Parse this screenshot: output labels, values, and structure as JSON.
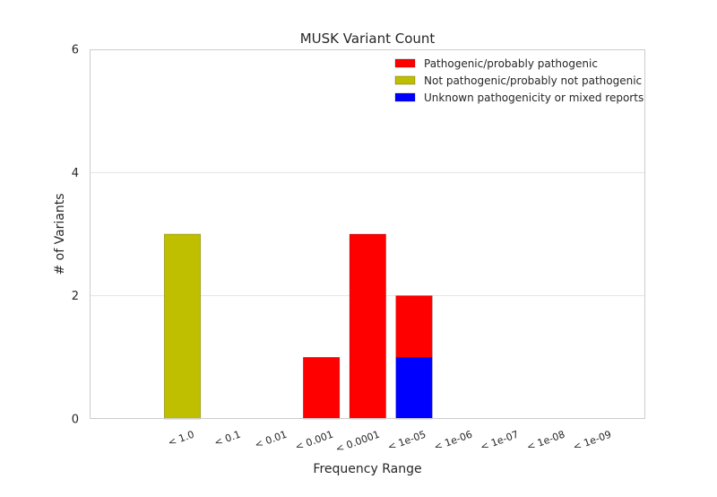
{
  "chart_data": {
    "type": "bar",
    "stacked": true,
    "title": "MUSK Variant Count",
    "xlabel": "Frequency Range",
    "ylabel": "# of Variants",
    "ylim": [
      0,
      6
    ],
    "yticks": [
      0,
      2,
      4,
      6
    ],
    "grid": true,
    "legend_placement": "top-right",
    "categories": [
      "< 1.0",
      "< 0.1",
      "< 0.01",
      "< 0.001",
      "< 0.0001",
      "< 1e-05",
      "< 1e-06",
      "< 1e-07",
      "< 1e-08",
      "< 1e-09"
    ],
    "series": [
      {
        "name": "Unknown pathogenicity or mixed reports",
        "color": "#0000ff",
        "values": [
          0,
          0,
          0,
          0,
          0,
          1,
          0,
          0,
          0,
          0
        ]
      },
      {
        "name": "Pathogenic/probably pathogenic",
        "color": "#ff0000",
        "values": [
          0,
          0,
          0,
          1,
          3,
          1,
          0,
          0,
          0,
          0
        ]
      },
      {
        "name": "Not pathogenic/probably not pathogenic",
        "color": "#bfbf00",
        "values": [
          3,
          0,
          0,
          0,
          0,
          0,
          0,
          0,
          0,
          0
        ]
      }
    ],
    "legend_order": [
      "Pathogenic/probably pathogenic",
      "Not pathogenic/probably not pathogenic",
      "Unknown pathogenicity or mixed reports"
    ]
  }
}
